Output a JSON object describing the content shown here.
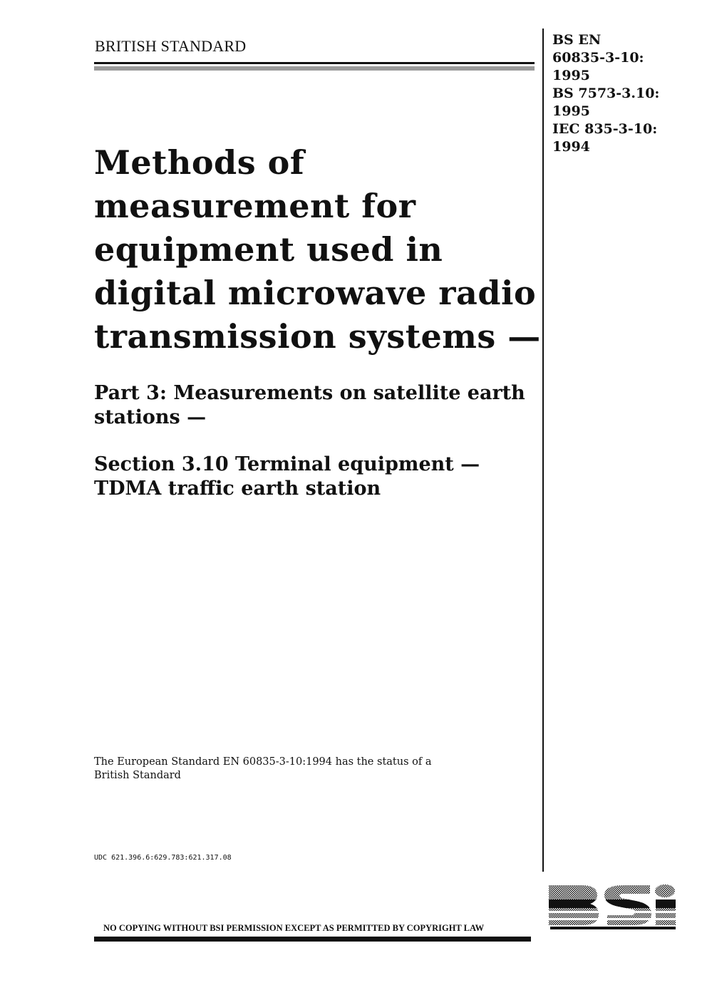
{
  "header": {
    "label": "BRITISH STANDARD"
  },
  "codes": [
    "BS EN",
    "60835-3-10:",
    "1995",
    "BS 7573-3.10:",
    "1995",
    "IEC 835-3-10:",
    "1994"
  ],
  "title": {
    "main": [
      "Methods of",
      "measurement for",
      "equipment used in",
      "digital microwave radio",
      "transmission systems —"
    ],
    "part": [
      "Part 3: Measurements on satellite earth",
      "stations —"
    ],
    "section": [
      "Section 3.10 Terminal equipment —",
      "TDMA traffic earth station"
    ]
  },
  "status_note": [
    "The European Standard EN 60835-3-10:1994 has the status of a",
    "British Standard"
  ],
  "udc": "UDC 621.396.6:629.783:621.317.08",
  "copyright_notice": "NO COPYING WITHOUT BSI PERMISSION EXCEPT AS PERMITTED BY COPYRIGHT LAW",
  "logo": {
    "text": "BSi"
  }
}
